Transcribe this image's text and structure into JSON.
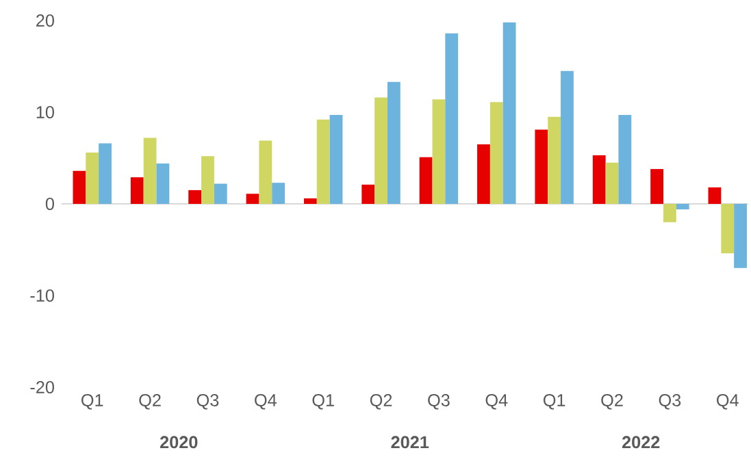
{
  "chart_data": {
    "type": "bar",
    "categories": [
      "Q1",
      "Q2",
      "Q3",
      "Q4",
      "Q1",
      "Q2",
      "Q3",
      "Q4",
      "Q1",
      "Q2",
      "Q3",
      "Q4"
    ],
    "series": [
      {
        "color": "#e60000",
        "values": [
          3.6,
          2.9,
          1.5,
          1.1,
          0.6,
          2.1,
          5.1,
          6.5,
          8.1,
          5.3,
          3.8,
          1.8
        ]
      },
      {
        "color": "#cfd762",
        "values": [
          5.6,
          7.2,
          5.2,
          6.9,
          9.2,
          11.6,
          11.4,
          11.1,
          9.5,
          4.5,
          -2.0,
          -5.4
        ]
      },
      {
        "color": "#6cb4dd",
        "values": [
          6.6,
          4.4,
          2.2,
          2.3,
          9.7,
          13.3,
          18.6,
          19.8,
          14.5,
          9.7,
          -0.6,
          -7.0
        ]
      }
    ],
    "ylim": [
      -20,
      20
    ],
    "yticks": [
      -20,
      -10,
      0,
      10,
      20
    ],
    "annotations": [
      "2020",
      "2021",
      "2022"
    ]
  }
}
